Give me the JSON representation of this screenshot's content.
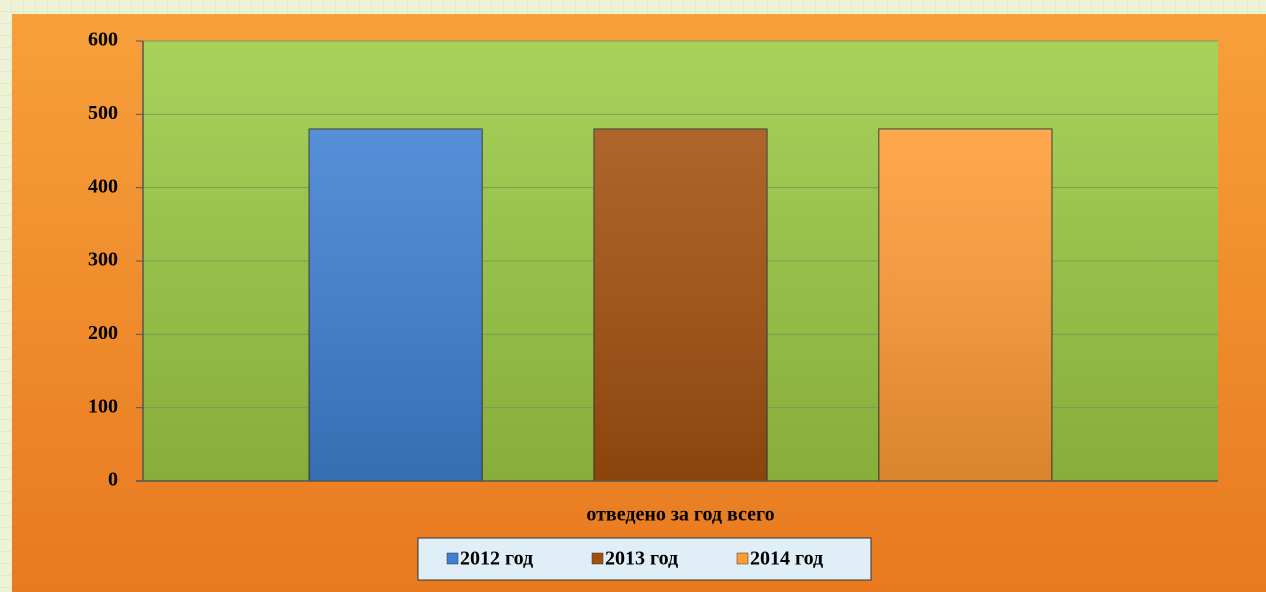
{
  "chart_data": {
    "type": "bar",
    "categories": [
      "отведено за год всего"
    ],
    "series": [
      {
        "name": "2012 год",
        "color": "#3f80d2",
        "values": [
          480
        ]
      },
      {
        "name": "2013 год",
        "color": "#a3500e",
        "values": [
          480
        ]
      },
      {
        "name": "2014 год",
        "color": "#ff9c36",
        "values": [
          480
        ]
      }
    ],
    "ylim": [
      0,
      600
    ],
    "yticks": [
      0,
      100,
      200,
      300,
      400,
      500,
      600
    ],
    "grid": true,
    "legend": "bottom"
  }
}
